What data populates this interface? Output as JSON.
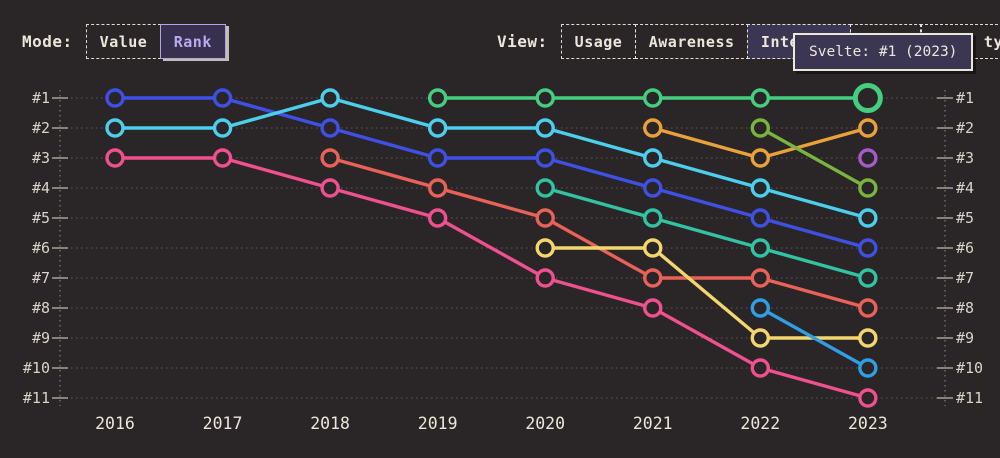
{
  "header": {
    "mode": {
      "label": "Mode:",
      "options": [
        {
          "label": "Value",
          "selected": false
        },
        {
          "label": "Rank",
          "selected": true
        }
      ]
    },
    "view": {
      "label": "View:",
      "options": [
        {
          "label": "Usage",
          "selected": false
        },
        {
          "label": "Awareness",
          "selected": false
        },
        {
          "label": "Interest",
          "selected": true
        },
        {
          "label": "",
          "selected": false
        },
        {
          "label": "ty",
          "selected": false
        }
      ]
    }
  },
  "tooltip": {
    "text": "Svelte: #1 (2023)"
  },
  "colors": {
    "background": "#2a2526",
    "text": "#ece7db",
    "axis_label": "#d9d4c9",
    "gridline": "#5d5751",
    "axis_dotted": "#8a847c",
    "tick": "#a09a91",
    "selected_purple": "#bca9f0",
    "tooltip_bg": "#3b3752"
  },
  "chart_data": {
    "type": "line",
    "subtype": "bump-rank-chart",
    "x_years": [
      2016,
      2017,
      2018,
      2019,
      2020,
      2021,
      2022,
      2023
    ],
    "rank_labels": [
      "#1",
      "#2",
      "#3",
      "#4",
      "#5",
      "#6",
      "#7",
      "#8",
      "#9",
      "#10",
      "#11"
    ],
    "ylim": [
      1,
      11
    ],
    "grid": "dotted-horizontal",
    "legend": "none (series identified by tooltip only)",
    "series": [
      {
        "name": "indigo",
        "color": "#3f51e5",
        "ranks": [
          1,
          1,
          2,
          3,
          3,
          4,
          5,
          6
        ]
      },
      {
        "name": "cyan",
        "color": "#4ccfec",
        "ranks": [
          2,
          2,
          1,
          2,
          2,
          3,
          4,
          5
        ]
      },
      {
        "name": "pink",
        "color": "#ef508e",
        "ranks": [
          3,
          3,
          4,
          5,
          7,
          8,
          10,
          11
        ]
      },
      {
        "name": "salmon",
        "color": "#e96258",
        "ranks": [
          null,
          null,
          3,
          4,
          5,
          7,
          7,
          8
        ]
      },
      {
        "name": "teal",
        "color": "#31c3a2",
        "ranks": [
          null,
          null,
          null,
          null,
          4,
          5,
          6,
          7
        ]
      },
      {
        "name": "yellow",
        "color": "#f3d76e",
        "ranks": [
          null,
          null,
          null,
          null,
          6,
          6,
          9,
          9
        ]
      },
      {
        "name": "orange",
        "color": "#e9a23b",
        "ranks": [
          null,
          null,
          null,
          null,
          null,
          2,
          3,
          2
        ]
      },
      {
        "name": "lime",
        "color": "#78b43e",
        "ranks": [
          null,
          null,
          null,
          null,
          null,
          null,
          2,
          4
        ]
      },
      {
        "name": "sky",
        "color": "#2f9fe5",
        "ranks": [
          null,
          null,
          null,
          null,
          null,
          null,
          8,
          10
        ]
      },
      {
        "name": "purple",
        "color": "#a55bc8",
        "ranks": [
          null,
          null,
          null,
          null,
          null,
          null,
          null,
          3
        ]
      },
      {
        "name": "svelte-green",
        "label": "Svelte",
        "color": "#46ce80",
        "ranks": [
          null,
          null,
          null,
          1,
          1,
          1,
          1,
          1
        ],
        "endpoint_big": true
      }
    ]
  }
}
